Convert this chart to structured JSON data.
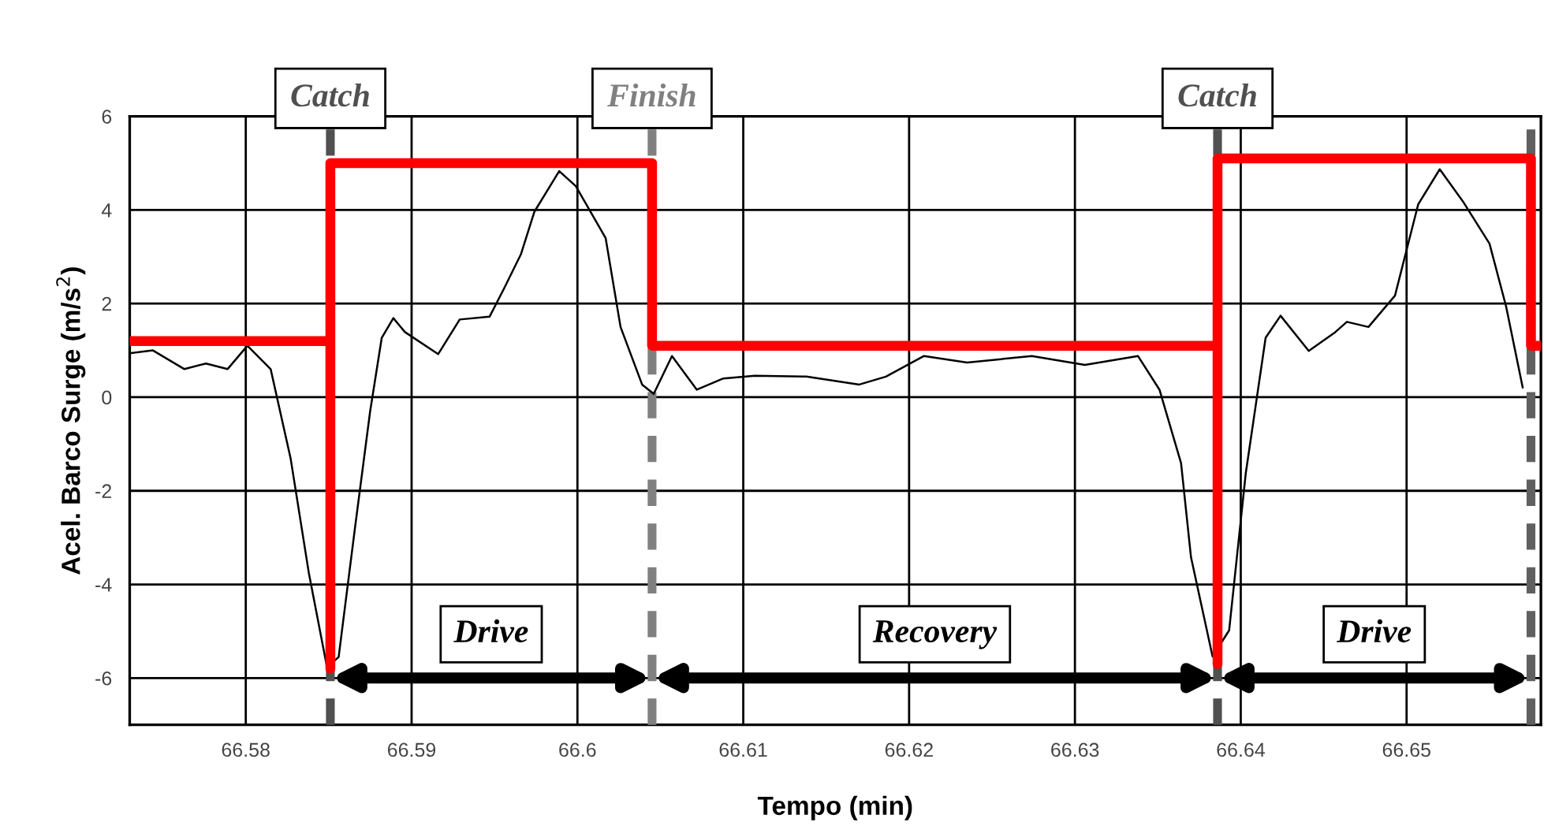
{
  "chart_data": {
    "type": "line",
    "xlabel": "Tempo (min)",
    "ylabel": "Acel. Barco Surge (m/s$^{2}$)",
    "xlim": [
      66.573,
      66.6581
    ],
    "ylim": [
      -7,
      6
    ],
    "xticks": [
      66.58,
      66.59,
      66.6,
      66.61,
      66.62,
      66.63,
      66.64,
      66.65
    ],
    "yticks": [
      {
        "value": -7,
        "label": null
      },
      -6,
      -4,
      -2,
      0,
      2,
      4,
      6
    ],
    "grid": true,
    "legend": false,
    "marker": "none",
    "line_style": "solid",
    "series": [
      {
        "color": "#000000",
        "x": [
          66.573,
          66.5744,
          66.5763,
          66.5776,
          66.5789,
          66.5801,
          66.5815,
          66.5827,
          66.5838,
          66.5849,
          66.5856,
          66.5866,
          66.5875,
          66.5882,
          66.5889,
          66.5896,
          66.5916,
          66.5929,
          66.5947,
          66.5956,
          66.5966,
          66.5974,
          66.5989,
          66.5999,
          66.6017,
          66.6026,
          66.6039,
          66.6046,
          66.6057,
          66.6072,
          66.6088,
          66.6107,
          66.6138,
          66.617,
          66.6186,
          66.6209,
          66.6235,
          66.6274,
          66.6306,
          66.6338,
          66.6351,
          66.6364,
          66.637,
          66.6383,
          66.6393,
          66.6403,
          66.6415,
          66.6424,
          66.6441,
          66.6457,
          66.6464,
          66.6477,
          66.6493,
          66.6507,
          66.652,
          66.6534,
          66.655,
          66.656,
          66.657
        ],
        "values": [
          0.94,
          1.0,
          0.6,
          0.72,
          0.6,
          1.1,
          0.6,
          -1.3,
          -3.75,
          -5.77,
          -5.55,
          -2.75,
          -0.3,
          1.27,
          1.69,
          1.39,
          0.92,
          1.66,
          1.72,
          2.34,
          3.06,
          3.96,
          4.83,
          4.51,
          3.4,
          1.5,
          0.27,
          0.07,
          0.88,
          0.16,
          0.4,
          0.46,
          0.44,
          0.27,
          0.44,
          0.88,
          0.74,
          0.88,
          0.69,
          0.88,
          0.16,
          -1.41,
          -3.42,
          -5.54,
          -4.98,
          -1.63,
          1.27,
          1.74,
          0.99,
          1.39,
          1.61,
          1.5,
          2.17,
          4.12,
          4.87,
          4.18,
          3.28,
          1.94,
          0.21
        ]
      },
      {
        "color": "#ff0000",
        "x": [
          66.573,
          66.5851,
          66.5851,
          66.5851,
          66.6045,
          66.6045,
          66.6386,
          66.6386,
          66.6386,
          66.6575,
          66.6575,
          66.6581
        ],
        "values": [
          1.2,
          1.2,
          -5.8,
          5.0,
          5.0,
          1.1,
          1.1,
          -5.7,
          5.1,
          5.1,
          1.1,
          1.1
        ]
      }
    ],
    "ref_lines": [
      {
        "axis": "x",
        "value": 66.5851,
        "label": "Catch",
        "color": "#505050",
        "line_style": "dashed"
      },
      {
        "axis": "x",
        "value": 66.6045,
        "label": "Finish",
        "color": "#808080",
        "line_style": "dashed"
      },
      {
        "axis": "x",
        "value": 66.6386,
        "label": "Catch",
        "color": "#505050",
        "line_style": "dashed"
      },
      {
        "axis": "x",
        "value": 66.6575,
        "label": null,
        "color": "#606060",
        "line_style": "dashed"
      }
    ],
    "annotations": [
      "Drive",
      "Recovery",
      "Drive"
    ]
  }
}
